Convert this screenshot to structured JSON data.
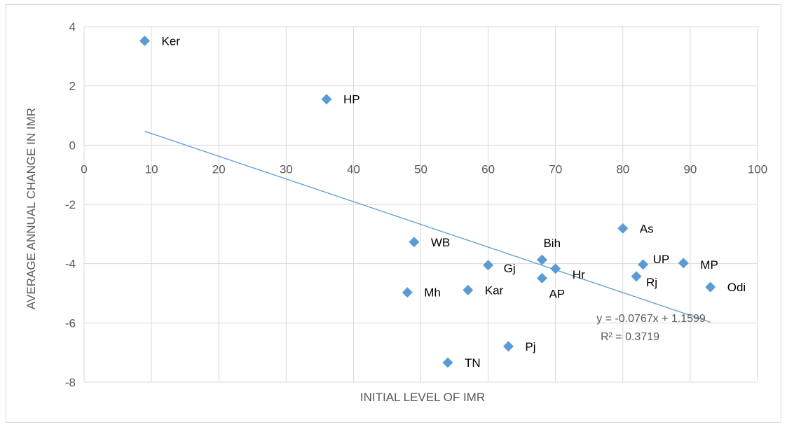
{
  "chart_data": {
    "type": "scatter",
    "title": "",
    "xlabel": "INITIAL LEVEL OF IMR",
    "ylabel": "AVERAGE ANNUAL CHANGE IN IMR",
    "xlim": [
      0,
      100
    ],
    "ylim": [
      -8,
      4
    ],
    "xticks": [
      0,
      10,
      20,
      30,
      40,
      50,
      60,
      70,
      80,
      90,
      100
    ],
    "yticks": [
      4,
      2,
      0,
      -2,
      -4,
      -6,
      -8
    ],
    "grid": true,
    "marker_color": "#5b9bd5",
    "trendline_color": "#5b9bd5",
    "points": [
      {
        "label": "Ker",
        "x": 9,
        "y": 3.52
      },
      {
        "label": "HP",
        "x": 36,
        "y": 1.55
      },
      {
        "label": "WB",
        "x": 49,
        "y": -3.27
      },
      {
        "label": "Mh",
        "x": 48,
        "y": -4.97
      },
      {
        "label": "Kar",
        "x": 57,
        "y": -4.89
      },
      {
        "label": "TN",
        "x": 54,
        "y": -7.34
      },
      {
        "label": "Gj",
        "x": 60,
        "y": -4.05
      },
      {
        "label": "Pj",
        "x": 63,
        "y": -6.79
      },
      {
        "label": "Bih",
        "x": 68,
        "y": -3.87
      },
      {
        "label": "AP",
        "x": 68,
        "y": -4.49
      },
      {
        "label": "Hr",
        "x": 70,
        "y": -4.17
      },
      {
        "label": "As",
        "x": 80,
        "y": -2.81
      },
      {
        "label": "UP",
        "x": 83,
        "y": -4.03
      },
      {
        "label": "Rj",
        "x": 82,
        "y": -4.43
      },
      {
        "label": "MP",
        "x": 89,
        "y": -3.98
      },
      {
        "label": "Odi",
        "x": 93,
        "y": -4.79
      }
    ],
    "trendline": {
      "slope": -0.0767,
      "intercept": 1.1599,
      "x_range": [
        9,
        93
      ]
    },
    "trendline_equation": "y = -0.0767x + 1.1599",
    "r_squared": "R² = 0.3719"
  }
}
